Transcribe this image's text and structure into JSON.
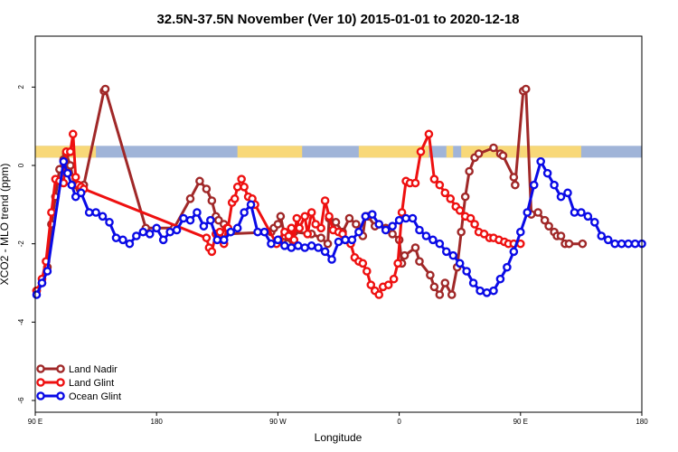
{
  "chart_data": {
    "type": "line",
    "title": "32.5N-37.5N November (Ver 10)   2015-01-01 to 2020-12-18",
    "xlabel": "Longitude",
    "ylabel": "XCO2 - MLO trend (ppm)",
    "x_ticks": [
      {
        "value": 90,
        "label": "90 E"
      },
      {
        "value": 180,
        "label": "180"
      },
      {
        "value": 270,
        "label": "90 W"
      },
      {
        "value": 360,
        "label": "0"
      },
      {
        "value": 450,
        "label": "90 E"
      },
      {
        "value": 540,
        "label": "180"
      }
    ],
    "y_ticks": [
      2,
      0,
      -2,
      -4,
      -6
    ],
    "xlim": [
      90,
      540
    ],
    "ylim": [
      -6.3,
      3.3
    ],
    "land_ocean_band": {
      "y_range": [
        0.2,
        0.5
      ],
      "ocean_color": "#a0b4d8",
      "land_color": "#f8d878",
      "land_intervals": [
        [
          90,
          135
        ],
        [
          240,
          288
        ],
        [
          330,
          382
        ],
        [
          395,
          400
        ],
        [
          406,
          450
        ],
        [
          450,
          495
        ]
      ]
    },
    "legend": {
      "position": "bottom-left"
    },
    "series": [
      {
        "name": "Land Nadir",
        "color": "#a02828",
        "x": [
          91,
          95,
          99,
          102,
          105,
          108,
          111,
          113,
          116,
          119,
          123,
          126,
          141,
          142,
          172,
          193,
          205,
          212,
          217,
          221,
          224,
          226,
          230,
          231,
          265,
          267,
          270,
          272,
          275,
          277,
          280,
          282,
          295,
          302,
          307,
          308,
          313,
          318,
          323,
          328,
          333,
          335,
          337,
          342,
          345,
          350,
          355,
          360,
          362,
          364,
          372,
          375,
          383,
          386,
          390,
          394,
          399,
          403,
          406,
          409,
          412,
          416,
          419,
          430,
          435,
          437,
          445,
          446,
          452,
          454,
          458,
          463,
          468,
          471,
          475,
          477,
          480,
          483,
          486,
          496
        ],
        "y": [
          -3.2,
          -3.0,
          -2.6,
          -1.5,
          -0.8,
          -0.1,
          0.15,
          0.3,
          0.0,
          -0.5,
          -0.6,
          -0.5,
          1.9,
          1.95,
          -1.6,
          -1.6,
          -0.85,
          -0.4,
          -0.6,
          -0.9,
          -1.3,
          -1.4,
          -1.5,
          -1.75,
          -1.7,
          -1.6,
          -1.5,
          -1.3,
          -1.8,
          -2.0,
          -1.6,
          -1.7,
          -1.75,
          -1.85,
          -2.0,
          -1.35,
          -1.45,
          -1.7,
          -1.35,
          -1.5,
          -1.8,
          -1.3,
          -1.3,
          -1.55,
          -1.5,
          -1.6,
          -1.75,
          -1.9,
          -2.5,
          -2.3,
          -2.1,
          -2.45,
          -2.8,
          -3.1,
          -3.3,
          -3.0,
          -3.3,
          -2.6,
          -1.7,
          -0.8,
          -0.15,
          0.2,
          0.3,
          0.45,
          0.3,
          0.25,
          -0.3,
          -0.5,
          1.9,
          1.95,
          -1.25,
          -1.2,
          -1.4,
          -1.55,
          -1.7,
          -1.8,
          -1.8,
          -2.0,
          -2.0,
          -2.0
        ]
      },
      {
        "name": "Land Glint",
        "color": "#ee1010",
        "x": [
          91,
          95,
          98,
          102,
          105,
          108,
          111,
          113,
          116,
          118,
          120,
          122,
          124,
          126,
          217,
          219,
          221,
          224,
          227,
          230,
          232,
          233,
          236,
          238,
          240,
          243,
          245,
          248,
          251,
          253,
          269,
          271,
          275,
          278,
          280,
          282,
          284,
          286,
          290,
          292,
          295,
          298,
          302,
          305,
          308,
          311,
          315,
          318,
          320,
          324,
          327,
          330,
          333,
          336,
          339,
          342,
          345,
          348,
          352,
          356,
          359,
          362,
          365,
          368,
          372,
          376,
          382,
          386,
          390,
          394,
          398,
          402,
          405,
          409,
          413,
          416,
          419,
          423,
          427,
          430,
          434,
          438,
          441,
          445,
          450
        ],
        "y": [
          -3.2,
          -2.9,
          -2.45,
          -1.2,
          -0.35,
          -0.4,
          -0.45,
          0.35,
          0.35,
          0.8,
          -0.3,
          -0.5,
          -0.55,
          -0.6,
          -1.85,
          -2.1,
          -2.2,
          -1.75,
          -1.7,
          -2.0,
          -1.6,
          -1.6,
          -0.95,
          -0.85,
          -0.55,
          -0.35,
          -0.55,
          -0.8,
          -0.85,
          -1.0,
          -2.0,
          -1.9,
          -1.7,
          -1.8,
          -1.6,
          -1.9,
          -1.35,
          -1.6,
          -1.3,
          -1.75,
          -1.2,
          -1.5,
          -1.6,
          -0.9,
          -1.3,
          -1.65,
          -1.7,
          -1.75,
          -1.9,
          -2.0,
          -2.35,
          -2.45,
          -2.5,
          -2.7,
          -3.05,
          -3.2,
          -3.3,
          -3.1,
          -3.05,
          -2.9,
          -2.5,
          -1.2,
          -0.4,
          -0.45,
          -0.45,
          0.35,
          0.8,
          -0.35,
          -0.5,
          -0.7,
          -0.85,
          -1.05,
          -1.15,
          -1.3,
          -1.35,
          -1.5,
          -1.7,
          -1.75,
          -1.85,
          -1.85,
          -1.9,
          -1.95,
          -2.0,
          -2.0,
          -2.0
        ]
      },
      {
        "name": "Ocean Glint",
        "color": "#0a0ae6",
        "x": [
          91,
          95,
          99,
          111,
          114,
          117,
          120,
          124,
          130,
          135,
          140,
          145,
          150,
          155,
          160,
          165,
          170,
          175,
          180,
          185,
          190,
          195,
          200,
          205,
          210,
          215,
          220,
          225,
          230,
          235,
          240,
          245,
          250,
          255,
          260,
          265,
          270,
          275,
          280,
          285,
          290,
          295,
          300,
          305,
          310,
          315,
          320,
          325,
          330,
          335,
          340,
          345,
          350,
          355,
          360,
          365,
          370,
          375,
          380,
          385,
          390,
          395,
          400,
          405,
          410,
          415,
          420,
          425,
          430,
          435,
          440,
          445,
          450,
          455,
          460,
          465,
          470,
          475,
          480,
          485,
          490,
          495,
          500,
          505,
          510,
          515,
          520,
          525,
          530,
          535,
          540
        ],
        "y": [
          -3.3,
          -3.0,
          -2.7,
          0.1,
          -0.2,
          -0.5,
          -0.8,
          -0.7,
          -1.2,
          -1.2,
          -1.3,
          -1.45,
          -1.85,
          -1.9,
          -2.0,
          -1.8,
          -1.7,
          -1.75,
          -1.6,
          -1.9,
          -1.7,
          -1.65,
          -1.35,
          -1.4,
          -1.2,
          -1.55,
          -1.4,
          -1.9,
          -1.9,
          -1.7,
          -1.6,
          -1.2,
          -1.0,
          -1.7,
          -1.7,
          -2.0,
          -1.9,
          -2.05,
          -2.1,
          -2.05,
          -2.1,
          -2.05,
          -2.1,
          -2.2,
          -2.4,
          -1.95,
          -1.9,
          -1.9,
          -1.7,
          -1.3,
          -1.25,
          -1.5,
          -1.65,
          -1.55,
          -1.4,
          -1.35,
          -1.35,
          -1.65,
          -1.8,
          -1.9,
          -2.0,
          -2.2,
          -2.3,
          -2.5,
          -2.7,
          -3.0,
          -3.2,
          -3.25,
          -3.2,
          -2.9,
          -2.6,
          -2.2,
          -1.7,
          -1.2,
          -0.5,
          0.1,
          -0.2,
          -0.5,
          -0.8,
          -0.7,
          -1.2,
          -1.2,
          -1.3,
          -1.45,
          -1.8,
          -1.9,
          -2.0,
          -2.0,
          -2.0,
          -2.0,
          -2.0
        ]
      }
    ]
  }
}
